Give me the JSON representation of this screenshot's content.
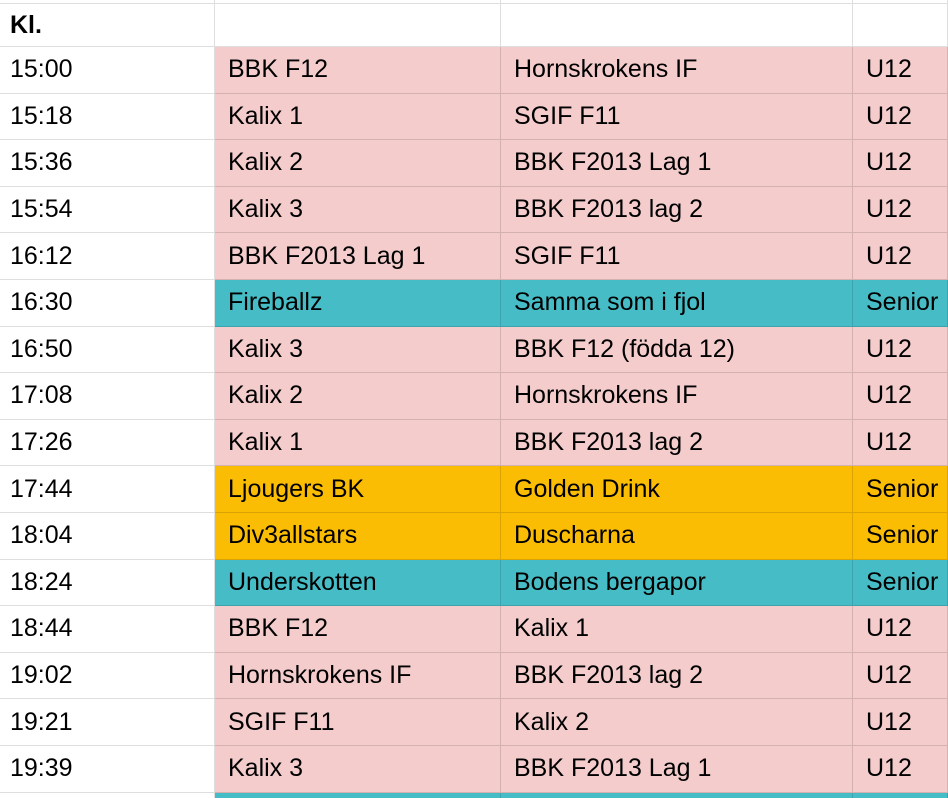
{
  "table": {
    "header": {
      "time": "Kl.",
      "team1": "",
      "team2": "",
      "category": ""
    },
    "colors": {
      "pink": "#f4cccc",
      "teal": "#46bdc6",
      "orange": "#fbbc04",
      "white": "#ffffff",
      "gridline": "#e0e0e0",
      "text": "#000000"
    },
    "rows": [
      {
        "time": "15:00",
        "team1": "BBK F12",
        "team2": "Hornskrokens IF",
        "category": "U12",
        "color": "pink"
      },
      {
        "time": "15:18",
        "team1": "Kalix 1",
        "team2": "SGIF F11",
        "category": "U12",
        "color": "pink"
      },
      {
        "time": "15:36",
        "team1": "Kalix 2",
        "team2": "BBK F2013 Lag 1",
        "category": "U12",
        "color": "pink"
      },
      {
        "time": "15:54",
        "team1": "Kalix 3",
        "team2": "BBK F2013 lag 2",
        "category": "U12",
        "color": "pink"
      },
      {
        "time": "16:12",
        "team1": "BBK F2013 Lag 1",
        "team2": "SGIF F11",
        "category": "U12",
        "color": "pink"
      },
      {
        "time": "16:30",
        "team1": "Fireballz",
        "team2": "Samma som i fjol",
        "category": "Senior",
        "color": "teal"
      },
      {
        "time": "16:50",
        "team1": "Kalix 3",
        "team2": "BBK F12 (födda 12)",
        "category": "U12",
        "color": "pink"
      },
      {
        "time": "17:08",
        "team1": "Kalix 2",
        "team2": "Hornskrokens IF",
        "category": "U12",
        "color": "pink"
      },
      {
        "time": "17:26",
        "team1": "Kalix 1",
        "team2": "BBK F2013 lag 2",
        "category": "U12",
        "color": "pink"
      },
      {
        "time": "17:44",
        "team1": "Ljougers BK",
        "team2": "Golden Drink",
        "category": "Senior",
        "color": "orange"
      },
      {
        "time": "18:04",
        "team1": "Div3allstars",
        "team2": "Duscharna",
        "category": "Senior",
        "color": "orange"
      },
      {
        "time": "18:24",
        "team1": "Underskotten",
        "team2": "Bodens bergapor",
        "category": "Senior",
        "color": "teal"
      },
      {
        "time": "18:44",
        "team1": "BBK F12",
        "team2": "Kalix 1",
        "category": "U12",
        "color": "pink"
      },
      {
        "time": "19:02",
        "team1": "Hornskrokens IF",
        "team2": "BBK F2013 lag 2",
        "category": "U12",
        "color": "pink"
      },
      {
        "time": "19:21",
        "team1": "SGIF F11",
        "team2": "Kalix 2",
        "category": "U12",
        "color": "pink"
      },
      {
        "time": "19:39",
        "team1": "Kalix 3",
        "team2": "BBK F2013 Lag 1",
        "category": "U12",
        "color": "pink"
      }
    ]
  }
}
